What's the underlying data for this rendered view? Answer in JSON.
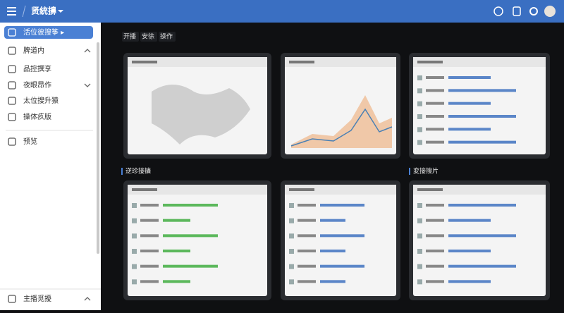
{
  "header": {
    "title": "贤統擤"
  },
  "sidebar": {
    "items": [
      "活位彼搜筝 ▸",
      "脾道内",
      "品控撰享",
      "夜眼昂作",
      "太位搜升猿",
      "操体疚版",
      "预览"
    ],
    "footer": "主播觅擾"
  },
  "toolbar": {
    "tabs": [
      "开播",
      "安徐",
      "操作"
    ]
  },
  "sections": [
    "逆珍接擴",
    "変接搜片"
  ]
}
